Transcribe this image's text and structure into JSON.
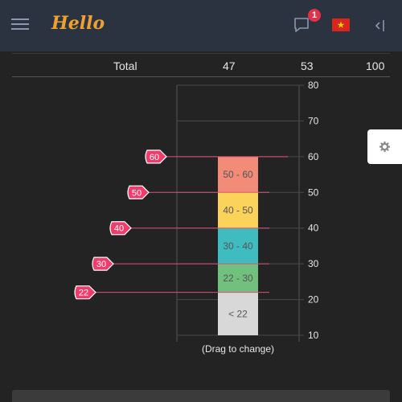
{
  "header": {
    "logo_text": "Hello",
    "notification_count": "1",
    "language_flag": "vietnam-flag",
    "accent_color": "#f0a030"
  },
  "totals_row": {
    "label": "Total",
    "values": [
      "47",
      "53",
      "100"
    ]
  },
  "chart_data": {
    "type": "bar",
    "orientation": "stacked-vertical",
    "ylim": [
      10,
      80
    ],
    "yticks": [
      10,
      20,
      30,
      40,
      50,
      60,
      70,
      80
    ],
    "segments": [
      {
        "label": "< 22",
        "from": 10,
        "to": 22,
        "color": "#d8d8d8"
      },
      {
        "label": "22 - 30",
        "from": 22,
        "to": 30,
        "color": "#72c07d"
      },
      {
        "label": "30 - 40",
        "from": 30,
        "to": 40,
        "color": "#3fbcc0"
      },
      {
        "label": "40 - 50",
        "from": 40,
        "to": 50,
        "color": "#fbd35b"
      },
      {
        "label": "50 - 60",
        "from": 50,
        "to": 60,
        "color": "#f28b78"
      }
    ],
    "handles": [
      {
        "label": "60",
        "value": 60
      },
      {
        "label": "50",
        "value": 50
      },
      {
        "label": "40",
        "value": 40
      },
      {
        "label": "30",
        "value": 30
      },
      {
        "label": "22",
        "value": 22
      }
    ],
    "grid": true,
    "xlabel": "(Drag to change)"
  },
  "settings": {
    "icon": "gear-icon"
  }
}
